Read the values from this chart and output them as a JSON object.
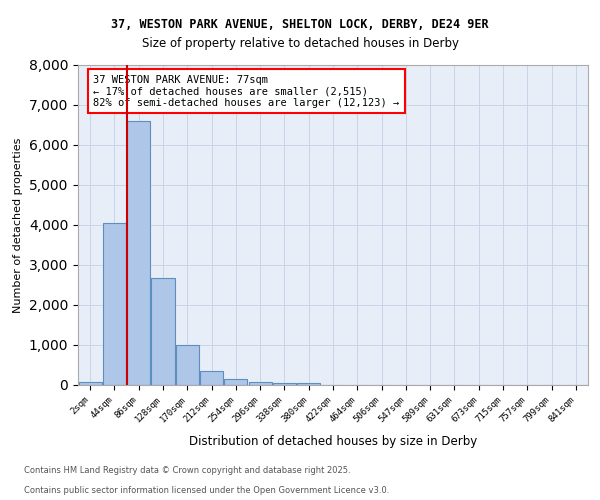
{
  "title1": "37, WESTON PARK AVENUE, SHELTON LOCK, DERBY, DE24 9ER",
  "title2": "Size of property relative to detached houses in Derby",
  "xlabel": "Distribution of detached houses by size in Derby",
  "ylabel": "Number of detached properties",
  "bin_labels": [
    "2sqm",
    "44sqm",
    "86sqm",
    "128sqm",
    "170sqm",
    "212sqm",
    "254sqm",
    "296sqm",
    "338sqm",
    "380sqm",
    "422sqm",
    "464sqm",
    "506sqm",
    "547sqm",
    "589sqm",
    "631sqm",
    "673sqm",
    "715sqm",
    "757sqm",
    "799sqm",
    "841sqm"
  ],
  "bar_heights": [
    80,
    4050,
    6600,
    2680,
    990,
    340,
    140,
    70,
    50,
    60,
    0,
    0,
    0,
    0,
    0,
    0,
    0,
    0,
    0,
    0,
    0
  ],
  "bar_color": "#aec6e8",
  "bar_edge_color": "#5a8fc0",
  "vline_x": 1.5,
  "vline_color": "#cc0000",
  "annotation_title": "37 WESTON PARK AVENUE: 77sqm",
  "annotation_line2": "← 17% of detached houses are smaller (2,515)",
  "annotation_line3": "82% of semi-detached houses are larger (12,123) →",
  "ylim": [
    0,
    8000
  ],
  "bg_color": "#e8eef8",
  "grid_color": "#c8d4e8",
  "footnote1": "Contains HM Land Registry data © Crown copyright and database right 2025.",
  "footnote2": "Contains public sector information licensed under the Open Government Licence v3.0."
}
